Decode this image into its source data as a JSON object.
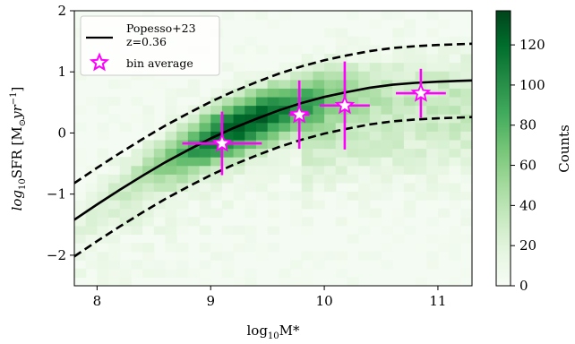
{
  "chart_data": {
    "type": "heatmap",
    "xlabel_main": "log",
    "xlabel_sub": "10",
    "xlabel_tail": "M*",
    "ylabel_main": "log",
    "ylabel_sub": "10",
    "ylabel_tail": "SFR [M",
    "ylabel_sun": "⊙",
    "ylabel_unit": "yr",
    "ylabel_exp": "−1",
    "ylabel_close": "]",
    "colorbar_label": "Counts",
    "xlim": [
      7.8,
      11.3
    ],
    "ylim": [
      -2.5,
      2.0
    ],
    "clim": [
      0,
      137
    ],
    "x_ticks": [
      {
        "v": 8,
        "label": "8"
      },
      {
        "v": 9,
        "label": "9"
      },
      {
        "v": 10,
        "label": "10"
      },
      {
        "v": 11,
        "label": "11"
      }
    ],
    "y_ticks": [
      {
        "v": -2,
        "label": "−2"
      },
      {
        "v": -1,
        "label": "−1"
      },
      {
        "v": 0,
        "label": "0"
      },
      {
        "v": 1,
        "label": "1"
      },
      {
        "v": 2,
        "label": "2"
      }
    ],
    "colorbar_ticks": [
      {
        "v": 0,
        "label": "0"
      },
      {
        "v": 20,
        "label": "20"
      },
      {
        "v": 40,
        "label": "40"
      },
      {
        "v": 60,
        "label": "60"
      },
      {
        "v": 80,
        "label": "80"
      },
      {
        "v": 100,
        "label": "100"
      },
      {
        "v": 120,
        "label": "120"
      }
    ],
    "grid": false,
    "legend": {
      "placement": "top-left",
      "entries": [
        {
          "label": "Popesso+23",
          "sublabel": "z=0.36",
          "kind": "solid-line"
        },
        {
          "label": "bin average",
          "kind": "star-marker"
        }
      ]
    },
    "series": [
      {
        "name": "Popesso+23",
        "type": "line",
        "style": "solid",
        "x": [
          7.8,
          8.0,
          8.2,
          8.4,
          8.6,
          8.8,
          9.0,
          9.2,
          9.4,
          9.6,
          9.8,
          10.0,
          10.2,
          10.4,
          10.6,
          10.8,
          11.0,
          11.3
        ],
        "y": [
          -1.42,
          -1.17,
          -0.93,
          -0.7,
          -0.48,
          -0.28,
          -0.09,
          0.08,
          0.23,
          0.37,
          0.49,
          0.59,
          0.67,
          0.74,
          0.79,
          0.82,
          0.84,
          0.86
        ]
      },
      {
        "type": "line",
        "style": "dashed",
        "x": [
          7.8,
          8.0,
          8.2,
          8.4,
          8.6,
          8.8,
          9.0,
          9.2,
          9.4,
          9.6,
          9.8,
          10.0,
          10.2,
          10.4,
          10.6,
          10.8,
          11.0,
          11.3
        ],
        "y": [
          -0.82,
          -0.57,
          -0.33,
          -0.1,
          0.12,
          0.32,
          0.51,
          0.68,
          0.83,
          0.97,
          1.09,
          1.19,
          1.27,
          1.34,
          1.39,
          1.42,
          1.44,
          1.46
        ]
      },
      {
        "type": "line",
        "style": "dashed",
        "x": [
          7.8,
          8.0,
          8.2,
          8.4,
          8.6,
          8.8,
          9.0,
          9.2,
          9.4,
          9.6,
          9.8,
          10.0,
          10.2,
          10.4,
          10.6,
          10.8,
          11.0,
          11.3
        ],
        "y": [
          -2.02,
          -1.77,
          -1.53,
          -1.3,
          -1.08,
          -0.88,
          -0.69,
          -0.52,
          -0.37,
          -0.23,
          -0.11,
          -0.01,
          0.07,
          0.14,
          0.19,
          0.22,
          0.24,
          0.26
        ]
      },
      {
        "name": "bin average",
        "type": "scatter",
        "color": "#ff00ff",
        "points": [
          {
            "x": 9.1,
            "y": -0.17,
            "xerr": 0.35,
            "yerr": 0.52
          },
          {
            "x": 9.78,
            "y": 0.3,
            "xerr": 0.09,
            "yerr": 0.56
          },
          {
            "x": 10.18,
            "y": 0.45,
            "xerr": 0.22,
            "yerr": 0.72
          },
          {
            "x": 10.85,
            "y": 0.65,
            "xerr": 0.22,
            "yerr": 0.4
          }
        ]
      }
    ]
  }
}
